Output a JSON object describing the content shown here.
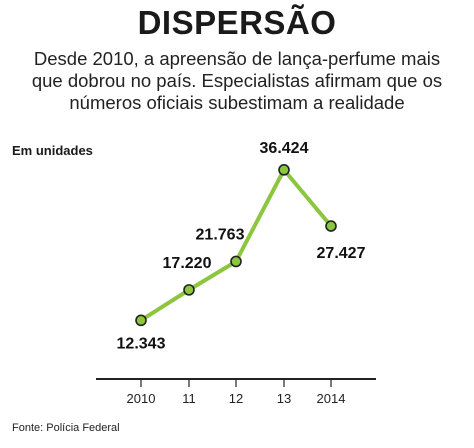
{
  "title": "DISPERSÃO",
  "subtitle_lines": [
    "Desde 2010, a apreensão de lança-perfume mais",
    "que dobrou no país. Especialistas afirmam que os",
    "números oficiais subestimam a realidade"
  ],
  "unit_label": "Em unidades",
  "source": "Fonte: Polícia Federal",
  "colors": {
    "line": "#8cc63f",
    "marker_fill": "#8cc63f",
    "marker_stroke": "#222222",
    "axis": "#222222"
  },
  "chart_data": {
    "type": "line",
    "categories": [
      "2010",
      "11",
      "12",
      "13",
      "2014"
    ],
    "values": [
      12343,
      17220,
      21763,
      36424,
      27427
    ],
    "value_labels": [
      "12.343",
      "17.220",
      "21.763",
      "36.424",
      "27.427"
    ],
    "ylabel": "Em unidades",
    "ylim": [
      6000,
      38000
    ],
    "grid": false
  }
}
